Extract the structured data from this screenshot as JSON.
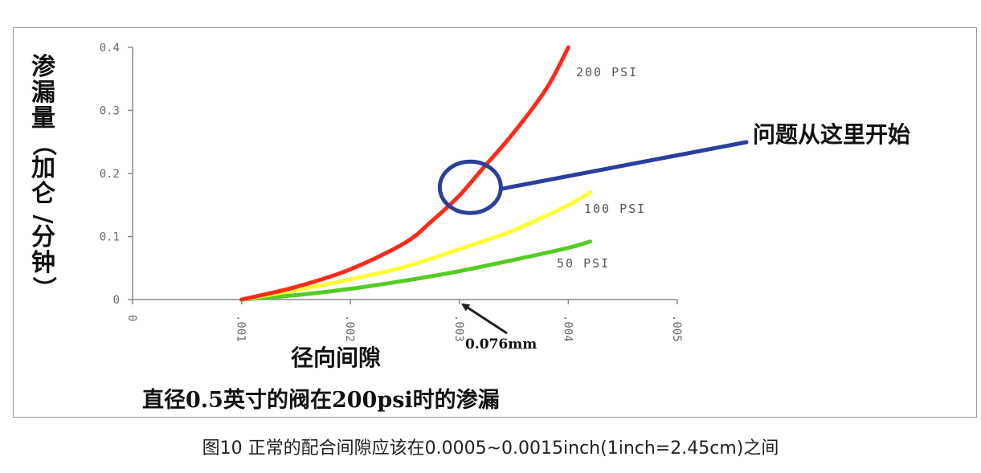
{
  "caption": "图10 正常的配合间隙应该在0.0005~0.0015inch(1inch=2.45cm)之间",
  "chart_data": {
    "type": "line",
    "title": "直径0.5英寸的阀在200psi时的渗漏",
    "xlabel": "径向间隙",
    "ylabel": "渗漏量（加仑/分钟）",
    "ylabel_chars": [
      "渗",
      "漏",
      "量",
      "（",
      "加",
      "仑",
      "/",
      "分",
      "钟",
      "）"
    ],
    "xlim": [
      0,
      0.005
    ],
    "ylim": [
      0,
      0.4
    ],
    "x_ticks": [
      0,
      0.001,
      0.002,
      0.003,
      0.004,
      0.005
    ],
    "x_tick_labels": [
      "0",
      ".001",
      ".002",
      ".003",
      ".004",
      ".005"
    ],
    "y_ticks": [
      0,
      0.1,
      0.2,
      0.3,
      0.4
    ],
    "y_tick_labels": [
      "0",
      "0.1",
      "0.2",
      "0.3",
      "0.4"
    ],
    "grid": false,
    "series": [
      {
        "name": "200 PSI",
        "color": "#ff2a1a",
        "x": [
          0.001,
          0.0015,
          0.002,
          0.0025,
          0.00275,
          0.003,
          0.0032,
          0.0035,
          0.0038,
          0.004
        ],
        "y": [
          0,
          0.02,
          0.048,
          0.09,
          0.125,
          0.165,
          0.205,
          0.265,
          0.335,
          0.4
        ]
      },
      {
        "name": "100 PSI",
        "color": "#ffff33",
        "x": [
          0.001,
          0.0015,
          0.002,
          0.0025,
          0.003,
          0.0035,
          0.004,
          0.0042
        ],
        "y": [
          0,
          0.015,
          0.032,
          0.052,
          0.08,
          0.11,
          0.15,
          0.17
        ]
      },
      {
        "name": "50 PSI",
        "color": "#55cc22",
        "x": [
          0.001,
          0.0015,
          0.002,
          0.0025,
          0.003,
          0.0035,
          0.004,
          0.0042
        ],
        "y": [
          0,
          0.007,
          0.017,
          0.03,
          0.045,
          0.063,
          0.082,
          0.092
        ]
      }
    ],
    "annotations": [
      {
        "text": "问题从这里开始",
        "x": 0.0031,
        "y": 0.178,
        "color": "#2b3f9a"
      },
      {
        "text": "0.076mm",
        "x": 0.003,
        "y": 0,
        "color": "#111111"
      }
    ]
  }
}
